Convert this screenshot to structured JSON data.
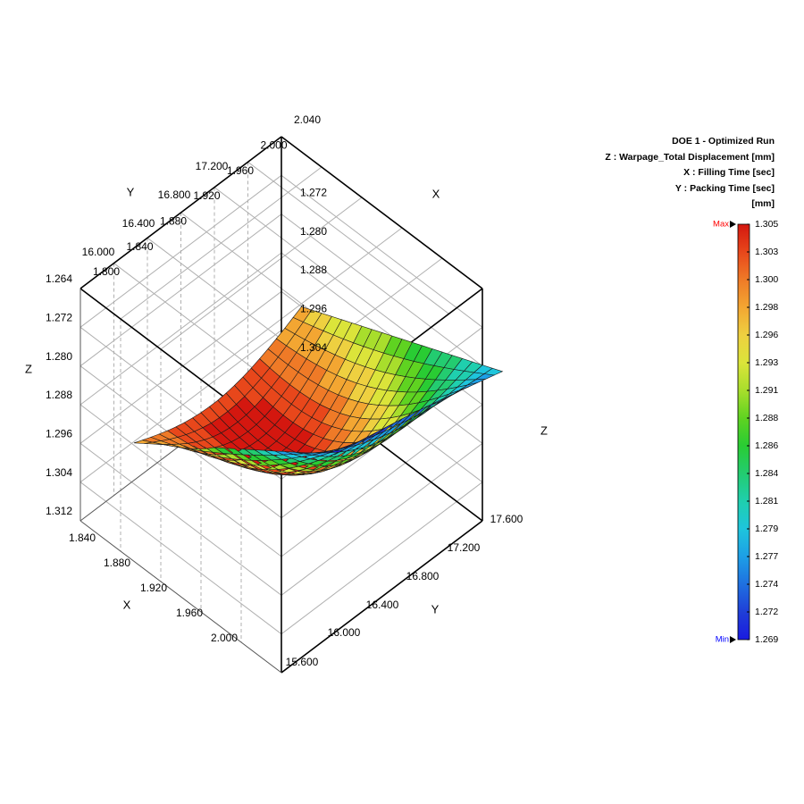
{
  "chart_data": {
    "type": "surface",
    "title": "DOE 1 - Optimized Run",
    "z_label": "Z : Warpage_Total Displacement [mm]",
    "x_label": "X : Filling Time [sec]",
    "y_label": "Y : Packing Time [sec]",
    "unit": "[mm]",
    "axes": {
      "x_name": "X",
      "y_name": "Y",
      "z_name": "Z",
      "x_ticks_top": [
        "1.800",
        "1.840",
        "1.880",
        "1.920",
        "1.960",
        "2.000",
        "2.040"
      ],
      "x_ticks_bottom": [
        "1.840",
        "1.880",
        "1.920",
        "1.960",
        "2.000"
      ],
      "y_ticks_left": [
        "16.000",
        "16.400",
        "16.800",
        "17.200"
      ],
      "y_ticks_bottom": [
        "15.600",
        "16.000",
        "16.400",
        "16.800",
        "17.200",
        "17.600"
      ],
      "z_ticks_left": [
        "1.264",
        "1.272",
        "1.280",
        "1.288",
        "1.296",
        "1.304",
        "1.312"
      ],
      "z_ticks_right": [
        "1.272",
        "1.280",
        "1.288",
        "1.296",
        "1.304"
      ],
      "x_range": [
        1.8,
        2.04
      ],
      "y_range": [
        15.6,
        17.6
      ],
      "z_range": [
        1.264,
        1.312
      ],
      "z_reversed": true
    },
    "surface": {
      "x_range": [
        1.84,
        2.04
      ],
      "y_range": [
        15.8,
        17.8
      ],
      "corner_values": [
        {
          "x": 1.84,
          "y": 15.8,
          "z": 1.298
        },
        {
          "x": 1.84,
          "y": 17.8,
          "z": 1.269
        },
        {
          "x": 2.04,
          "y": 17.8,
          "z": 1.278
        },
        {
          "x": 2.04,
          "y": 15.8,
          "z": 1.296
        }
      ],
      "max_value": 1.305,
      "min_value": 1.269
    },
    "colorbar": {
      "max_label": "Max",
      "min_label": "Min",
      "values": [
        "1.305",
        "1.303",
        "1.300",
        "1.298",
        "1.296",
        "1.293",
        "1.291",
        "1.288",
        "1.286",
        "1.284",
        "1.281",
        "1.279",
        "1.277",
        "1.274",
        "1.272",
        "1.269"
      ],
      "colors": [
        "#d4170f",
        "#e8471b",
        "#ef7a27",
        "#f3a632",
        "#eed040",
        "#dbe43a",
        "#a8de2c",
        "#5fd321",
        "#29cc33",
        "#23cc70",
        "#1fcfae",
        "#1ec5dc",
        "#1d9fe6",
        "#1f70e0",
        "#1f3fd8",
        "#1a1ae0"
      ],
      "max_color": "#ff0000",
      "min_color": "#0000ff"
    }
  }
}
